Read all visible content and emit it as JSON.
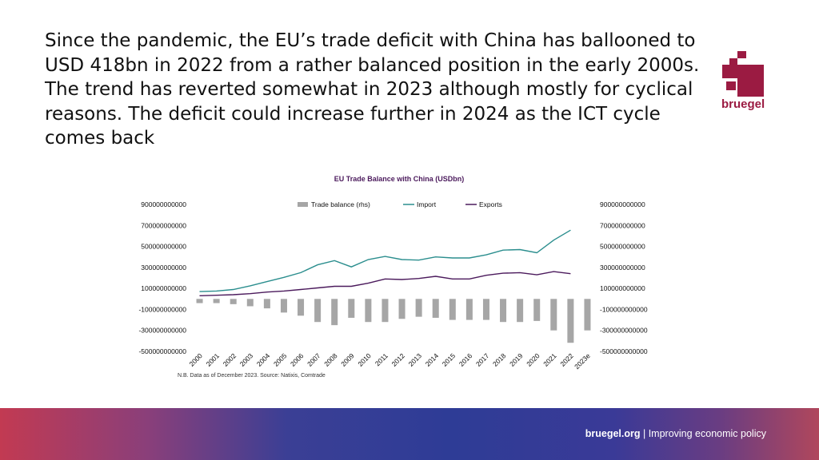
{
  "headline": "Since the pandemic, the EU’s trade deficit with China has ballooned to USD 418bn in 2022 from a rather balanced position in the early 2000s. The trend has reverted somewhat in 2023 although mostly for cyclical reasons. The deficit could increase further in 2024 as the ICT cycle comes back",
  "logo": {
    "text": "bruegel",
    "color": "#9b1b42"
  },
  "footer": {
    "site": "bruegel.org",
    "separator": " | ",
    "tagline": "Improving economic policy"
  },
  "colors": {
    "trade_balance": "#a6a6a6",
    "import": "#2b8e8e",
    "exports": "#4b1a5c",
    "title": "#4b1a5c"
  },
  "chart_data": {
    "type": "bar+line",
    "title": "EU Trade Balance with China (USDbn)",
    "note": "N.B. Data as of December 2023. Source: Natixis, Comtrade",
    "categories": [
      "2000",
      "2001",
      "2002",
      "2003",
      "2004",
      "2005",
      "2006",
      "2007",
      "2008",
      "2009",
      "2010",
      "2011",
      "2012",
      "2013",
      "2014",
      "2015",
      "2016",
      "2017",
      "2018",
      "2019",
      "2020",
      "2021",
      "2022",
      "2023e"
    ],
    "ylim": [
      -500000000000,
      900000000000
    ],
    "yticks": [
      "900000000000",
      "700000000000",
      "500000000000",
      "300000000000",
      "100000000000",
      "-100000000000",
      "-300000000000",
      "-500000000000"
    ],
    "legend_position": "top",
    "series": [
      {
        "name": "Trade balance (rhs)",
        "type": "bar",
        "axis": "right",
        "values": [
          -40000000000,
          -40000000000,
          -50000000000,
          -70000000000,
          -90000000000,
          -130000000000,
          -160000000000,
          -220000000000,
          -250000000000,
          -180000000000,
          -220000000000,
          -220000000000,
          -190000000000,
          -170000000000,
          -180000000000,
          -200000000000,
          -200000000000,
          -200000000000,
          -220000000000,
          -220000000000,
          -210000000000,
          -300000000000,
          -418000000000,
          -300000000000
        ]
      },
      {
        "name": "Import",
        "type": "line",
        "axis": "left",
        "values": [
          70000000000,
          75000000000,
          90000000000,
          125000000000,
          165000000000,
          205000000000,
          250000000000,
          325000000000,
          365000000000,
          305000000000,
          375000000000,
          405000000000,
          375000000000,
          370000000000,
          400000000000,
          390000000000,
          390000000000,
          420000000000,
          465000000000,
          470000000000,
          440000000000,
          560000000000,
          655000000000,
          null
        ]
      },
      {
        "name": "Exports",
        "type": "line",
        "axis": "left",
        "values": [
          30000000000,
          35000000000,
          40000000000,
          50000000000,
          65000000000,
          75000000000,
          90000000000,
          105000000000,
          120000000000,
          120000000000,
          150000000000,
          190000000000,
          185000000000,
          195000000000,
          215000000000,
          190000000000,
          190000000000,
          225000000000,
          245000000000,
          250000000000,
          230000000000,
          260000000000,
          240000000000,
          null
        ]
      }
    ]
  }
}
